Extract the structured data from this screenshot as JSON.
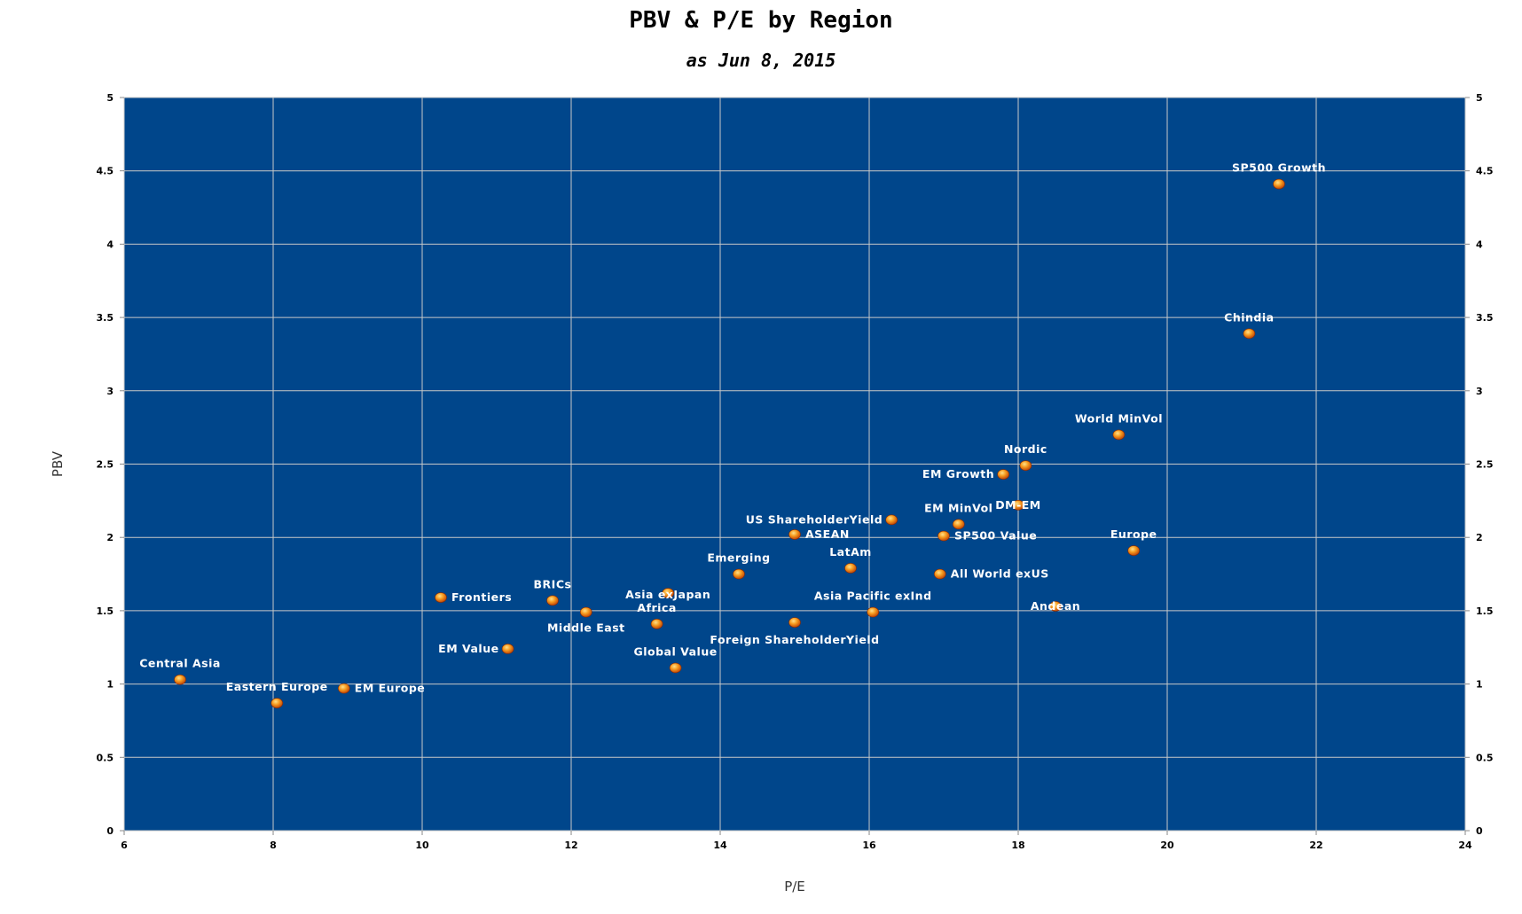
{
  "chart_data": {
    "type": "scatter",
    "title": "PBV & P/E by Region",
    "subtitle": "as Jun 8, 2015",
    "xlabel": "P/E",
    "ylabel": "PBV",
    "xlim": [
      6,
      24
    ],
    "ylim": [
      0,
      5
    ],
    "x_ticks": [
      "6",
      "8",
      "10",
      "12",
      "14",
      "16",
      "18",
      "20",
      "22",
      "24"
    ],
    "y_ticks": [
      "0",
      "0.5",
      "1",
      "1.5",
      "2",
      "2.5",
      "3",
      "3.5",
      "4",
      "4.5",
      "5"
    ],
    "grid": true,
    "plot_background": "#00468b",
    "grid_color": "#c8c8c8",
    "marker_color": "#f07a10",
    "label_color": "#ffffff",
    "points": [
      {
        "label": "SP500 Growth",
        "x": 21.5,
        "y": 4.41
      },
      {
        "label": "Chindia",
        "x": 21.1,
        "y": 3.39
      },
      {
        "label": "World MinVol",
        "x": 19.35,
        "y": 2.7
      },
      {
        "label": "Nordic",
        "x": 18.1,
        "y": 2.49
      },
      {
        "label": "EM Growth",
        "x": 17.8,
        "y": 2.43
      },
      {
        "label": "DM-EM",
        "x": 18.0,
        "y": 2.22
      },
      {
        "label": "EM MinVol",
        "x": 17.2,
        "y": 2.09
      },
      {
        "label": "US ShareholderYield",
        "x": 16.3,
        "y": 2.12
      },
      {
        "label": "SP500 Value",
        "x": 17.0,
        "y": 2.01
      },
      {
        "label": "ASEAN",
        "x": 15.0,
        "y": 2.02
      },
      {
        "label": "Europe",
        "x": 19.55,
        "y": 1.91
      },
      {
        "label": "LatAm",
        "x": 15.75,
        "y": 1.79
      },
      {
        "label": "Emerging",
        "x": 14.25,
        "y": 1.75
      },
      {
        "label": "All World exUS",
        "x": 16.95,
        "y": 1.75
      },
      {
        "label": "Asia exJapan",
        "x": 13.3,
        "y": 1.62
      },
      {
        "label": "Frontiers",
        "x": 10.25,
        "y": 1.59
      },
      {
        "label": "BRICs",
        "x": 11.75,
        "y": 1.57
      },
      {
        "label": "Andean",
        "x": 18.5,
        "y": 1.53
      },
      {
        "label": "Asia Pacific exInd",
        "x": 16.05,
        "y": 1.49
      },
      {
        "label": "Middle East",
        "x": 12.2,
        "y": 1.49
      },
      {
        "label": "Foreign ShareholderYield",
        "x": 15.0,
        "y": 1.42
      },
      {
        "label": "Africa",
        "x": 13.15,
        "y": 1.41
      },
      {
        "label": "EM Value",
        "x": 11.15,
        "y": 1.24
      },
      {
        "label": "Global Value",
        "x": 13.4,
        "y": 1.11
      },
      {
        "label": "Central Asia",
        "x": 6.75,
        "y": 1.03
      },
      {
        "label": "EM Europe",
        "x": 8.95,
        "y": 0.97
      },
      {
        "label": "Eastern Europe",
        "x": 8.05,
        "y": 0.87
      }
    ]
  }
}
